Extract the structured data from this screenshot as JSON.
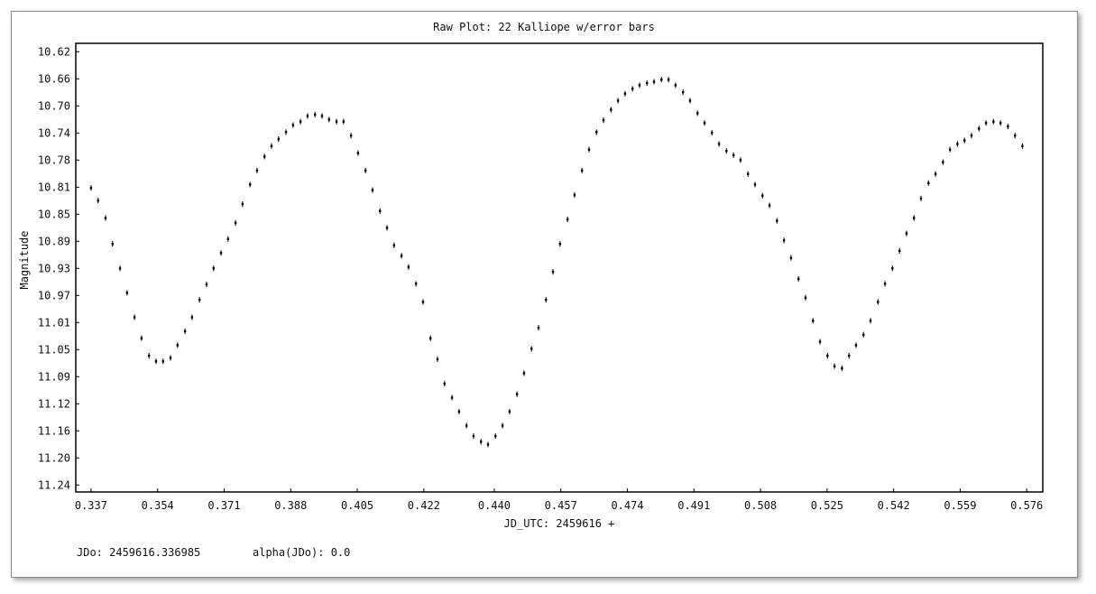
{
  "chart_data": {
    "type": "scatter",
    "title": "Raw Plot: 22 Kalliope w/error bars",
    "x_label": "JD_UTC: 2459616 +",
    "y_label": "Magnitude",
    "notes": [
      "JDo: 2459616.336985",
      "alpha(JDo): 0.0"
    ],
    "y_inverted": true,
    "color": "#000000",
    "error": 0.004,
    "xlim": [
      0.3331,
      0.5801
    ],
    "ylim": [
      10.608,
      11.25
    ],
    "xticks": [
      0.337,
      0.354,
      0.371,
      0.388,
      0.405,
      0.422,
      {
        "value": 0.44,
        "label": "0.440"
      },
      0.457,
      0.474,
      0.491,
      0.508,
      0.525,
      0.542,
      0.559,
      0.576
    ],
    "yticks": [
      {
        "value": 10.62,
        "label": "10.62"
      },
      {
        "value": 10.6588,
        "label": "10.66"
      },
      {
        "value": 10.6975,
        "label": "10.70"
      },
      {
        "value": 10.7363,
        "label": "10.74"
      },
      {
        "value": 10.775,
        "label": "10.78"
      },
      {
        "value": 10.8138,
        "label": "10.81"
      },
      {
        "value": 10.8525,
        "label": "10.85"
      },
      {
        "value": 10.8913,
        "label": "10.89"
      },
      {
        "value": 10.93,
        "label": "10.93"
      },
      {
        "value": 10.9688,
        "label": "10.97"
      },
      {
        "value": 11.0075,
        "label": "11.01"
      },
      {
        "value": 11.0463,
        "label": "11.05"
      },
      {
        "value": 11.085,
        "label": "11.09"
      },
      {
        "value": 11.1238,
        "label": "11.12"
      },
      {
        "value": 11.1625,
        "label": "11.16"
      },
      {
        "value": 11.2013,
        "label": "11.20"
      },
      {
        "value": 11.24,
        "label": "11.24"
      }
    ],
    "x": [
      0.337,
      0.3388,
      0.3407,
      0.3425,
      0.3444,
      0.3462,
      0.3481,
      0.3499,
      0.3518,
      0.3536,
      0.3554,
      0.3573,
      0.3591,
      0.361,
      0.3628,
      0.3647,
      0.3665,
      0.3683,
      0.3702,
      0.372,
      0.3739,
      0.3757,
      0.3776,
      0.3794,
      0.3813,
      0.3831,
      0.3849,
      0.3868,
      0.3886,
      0.3905,
      0.3923,
      0.3942,
      0.396,
      0.3978,
      0.3997,
      0.4015,
      0.4034,
      0.4052,
      0.4071,
      0.4089,
      0.4108,
      0.4126,
      0.4144,
      0.4163,
      0.4181,
      0.42,
      0.4218,
      0.4237,
      0.4255,
      0.4273,
      0.4292,
      0.431,
      0.4329,
      0.4347,
      0.4366,
      0.4384,
      0.4403,
      0.4421,
      0.4439,
      0.4458,
      0.4476,
      0.4495,
      0.4513,
      0.4532,
      0.455,
      0.4568,
      0.4587,
      0.4605,
      0.4624,
      0.4642,
      0.4661,
      0.4679,
      0.4698,
      0.4716,
      0.4734,
      0.4753,
      0.4771,
      0.479,
      0.4808,
      0.4827,
      0.4845,
      0.4863,
      0.4882,
      0.49,
      0.4919,
      0.4937,
      0.4956,
      0.4974,
      0.4993,
      0.5011,
      0.5029,
      0.5048,
      0.5066,
      0.5085,
      0.5103,
      0.5122,
      0.514,
      0.5158,
      0.5177,
      0.5195,
      0.5214,
      0.5232,
      0.5251,
      0.5269,
      0.5288,
      0.5306,
      0.5324,
      0.5343,
      0.5361,
      0.538,
      0.5398,
      0.5417,
      0.5435,
      0.5453,
      0.5472,
      0.549,
      0.5509,
      0.5527,
      0.5546,
      0.5564,
      0.5583,
      0.5601,
      0.5619,
      0.5638,
      0.5656,
      0.5675,
      0.5693,
      0.5712,
      0.573,
      0.5749
    ],
    "values": [
      10.815,
      10.833,
      10.858,
      10.895,
      10.93,
      10.965,
      11.0,
      11.03,
      11.055,
      11.063,
      11.063,
      11.058,
      11.04,
      11.02,
      11.0,
      10.975,
      10.953,
      10.93,
      10.908,
      10.888,
      10.865,
      10.838,
      10.81,
      10.79,
      10.77,
      10.755,
      10.745,
      10.735,
      10.725,
      10.72,
      10.712,
      10.71,
      10.712,
      10.717,
      10.72,
      10.72,
      10.74,
      10.765,
      10.79,
      10.818,
      10.848,
      10.872,
      10.897,
      10.912,
      10.928,
      10.952,
      10.978,
      11.03,
      11.06,
      11.095,
      11.115,
      11.135,
      11.155,
      11.17,
      11.178,
      11.182,
      11.17,
      11.155,
      11.135,
      11.11,
      11.08,
      11.045,
      11.015,
      10.975,
      10.935,
      10.895,
      10.86,
      10.825,
      10.79,
      10.76,
      10.735,
      10.718,
      10.703,
      10.69,
      10.68,
      10.673,
      10.668,
      10.665,
      10.663,
      10.66,
      10.66,
      10.668,
      10.678,
      10.69,
      10.708,
      10.722,
      10.736,
      10.752,
      10.762,
      10.768,
      10.775,
      10.795,
      10.81,
      10.826,
      10.84,
      10.862,
      10.89,
      10.915,
      10.945,
      10.972,
      11.005,
      11.035,
      11.055,
      11.07,
      11.073,
      11.055,
      11.04,
      11.025,
      11.005,
      10.978,
      10.952,
      10.93,
      10.905,
      10.88,
      10.858,
      10.83,
      10.808,
      10.795,
      10.778,
      10.76,
      10.752,
      10.747,
      10.74,
      10.73,
      10.722,
      10.72,
      10.722,
      10.727,
      10.74,
      10.755
    ]
  }
}
